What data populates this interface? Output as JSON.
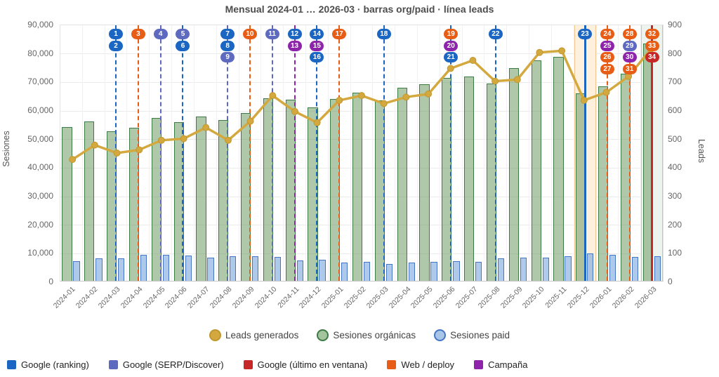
{
  "title": "Mensual 2024-01 … 2026-03 · barras org/paid · línea leads",
  "chart_data": {
    "type": "bar+line",
    "categories": [
      "2024-01",
      "2024-02",
      "2024-03",
      "2024-04",
      "2024-05",
      "2024-06",
      "2024-07",
      "2024-08",
      "2024-09",
      "2024-10",
      "2024-11",
      "2024-12",
      "2025-01",
      "2025-02",
      "2025-03",
      "2025-04",
      "2025-05",
      "2025-06",
      "2025-07",
      "2025-08",
      "2025-09",
      "2025-10",
      "2025-11",
      "2025-12",
      "2026-01",
      "2026-02",
      "2026-03"
    ],
    "series": [
      {
        "name": "Sesiones orgánicas",
        "type": "bar",
        "axis": "left",
        "values": [
          53800,
          55900,
          52400,
          53600,
          57000,
          55500,
          57500,
          56300,
          58800,
          64000,
          63500,
          60800,
          63800,
          65900,
          63300,
          67600,
          68900,
          71100,
          71500,
          69000,
          74400,
          77100,
          78500,
          65600,
          68100,
          72500,
          83000
        ]
      },
      {
        "name": "Sesiones paid",
        "type": "bar",
        "axis": "left",
        "values": [
          7000,
          7800,
          7900,
          9200,
          9100,
          8900,
          8100,
          8700,
          8600,
          8400,
          7200,
          7400,
          6300,
          6600,
          5800,
          6400,
          6700,
          6900,
          6600,
          7800,
          8000,
          8200,
          8600,
          9500,
          9200,
          8400,
          8600
        ]
      },
      {
        "name": "Leads generados",
        "type": "line",
        "axis": "right",
        "values": [
          380,
          425,
          400,
          410,
          440,
          445,
          480,
          440,
          500,
          580,
          530,
          495,
          565,
          580,
          555,
          575,
          585,
          665,
          690,
          625,
          630,
          715,
          720,
          565,
          590,
          640,
          725
        ]
      }
    ],
    "left_axis": {
      "label": "Sesiones",
      "min": 0,
      "max": 90000,
      "step": 10000
    },
    "right_axis": {
      "label": "Leads",
      "min": 0,
      "max": 800,
      "step": 100
    },
    "grid": true,
    "event_types": {
      "ranking": {
        "label": "Google (ranking)",
        "color": "#1a66c2"
      },
      "serp": {
        "label": "Google (SERP/Discover)",
        "color": "#5e6abf"
      },
      "window": {
        "label": "Google (último en ventana)",
        "color": "#c62828"
      },
      "deploy": {
        "label": "Web / deploy",
        "color": "#e85d15"
      },
      "campaign": {
        "label": "Campaña",
        "color": "#8e24aa"
      }
    },
    "event_order": [
      "ranking",
      "serp",
      "window",
      "deploy",
      "campaign"
    ],
    "events": [
      {
        "month": "2024-03",
        "line_style": "dashed",
        "markers": [
          {
            "n": 1,
            "type": "ranking"
          },
          {
            "n": 2,
            "type": "ranking"
          }
        ]
      },
      {
        "month": "2024-04",
        "line_style": "dashed",
        "markers": [
          {
            "n": 3,
            "type": "deploy"
          }
        ]
      },
      {
        "month": "2024-05",
        "line_style": "dashed",
        "markers": [
          {
            "n": 4,
            "type": "serp"
          }
        ]
      },
      {
        "month": "2024-06",
        "line_style": "dashed",
        "markers": [
          {
            "n": 5,
            "type": "serp"
          },
          {
            "n": 6,
            "type": "ranking"
          }
        ]
      },
      {
        "month": "2024-08",
        "line_style": "dashed",
        "markers": [
          {
            "n": 7,
            "type": "ranking"
          },
          {
            "n": 8,
            "type": "ranking"
          },
          {
            "n": 9,
            "type": "serp"
          }
        ]
      },
      {
        "month": "2024-09",
        "line_style": "dashed",
        "markers": [
          {
            "n": 10,
            "type": "deploy"
          }
        ]
      },
      {
        "month": "2024-10",
        "line_style": "dashed",
        "markers": [
          {
            "n": 11,
            "type": "serp"
          }
        ]
      },
      {
        "month": "2024-11",
        "line_style": "dashed",
        "markers": [
          {
            "n": 12,
            "type": "ranking"
          },
          {
            "n": 13,
            "type": "campaign"
          }
        ]
      },
      {
        "month": "2024-12",
        "line_style": "dashed",
        "markers": [
          {
            "n": 14,
            "type": "ranking"
          },
          {
            "n": 15,
            "type": "campaign"
          },
          {
            "n": 16,
            "type": "ranking"
          }
        ]
      },
      {
        "month": "2025-01",
        "line_style": "dashed",
        "markers": [
          {
            "n": 17,
            "type": "deploy"
          }
        ]
      },
      {
        "month": "2025-03",
        "line_style": "dashed",
        "markers": [
          {
            "n": 18,
            "type": "ranking"
          }
        ]
      },
      {
        "month": "2025-06",
        "line_style": "dashed",
        "markers": [
          {
            "n": 19,
            "type": "deploy"
          },
          {
            "n": 20,
            "type": "campaign"
          },
          {
            "n": 21,
            "type": "ranking"
          }
        ]
      },
      {
        "month": "2025-08",
        "line_style": "dashed",
        "markers": [
          {
            "n": 22,
            "type": "ranking"
          }
        ]
      },
      {
        "month": "2025-12",
        "line_style": "solid",
        "markers": [
          {
            "n": 23,
            "type": "ranking"
          }
        ]
      },
      {
        "month": "2026-01",
        "line_style": "dashed",
        "markers": [
          {
            "n": 24,
            "type": "deploy"
          },
          {
            "n": 25,
            "type": "campaign"
          },
          {
            "n": 26,
            "type": "deploy"
          },
          {
            "n": 27,
            "type": "deploy"
          }
        ]
      },
      {
        "month": "2026-02",
        "line_style": "dashed",
        "markers": [
          {
            "n": 28,
            "type": "deploy"
          },
          {
            "n": 29,
            "type": "serp"
          },
          {
            "n": 30,
            "type": "campaign"
          },
          {
            "n": 31,
            "type": "deploy"
          }
        ]
      },
      {
        "month": "2026-03",
        "line_style": "solid",
        "markers": [
          {
            "n": 32,
            "type": "deploy"
          },
          {
            "n": 33,
            "type": "deploy"
          },
          {
            "n": 34,
            "type": "window"
          }
        ]
      }
    ],
    "highlight_bands": [
      {
        "month": "2025-12",
        "fill": "#fdf0dd",
        "border": "#f2c791"
      },
      {
        "month": "2026-03",
        "fill": "#edf3ed",
        "border": "#b3d0b3"
      }
    ]
  },
  "legend_series": [
    {
      "label": "Leads generados",
      "fill": "#d3a83e",
      "border": "#c1982f"
    },
    {
      "label": "Sesiones orgánicas",
      "fill": "#a3c49d",
      "border": "#3d7b45"
    },
    {
      "label": "Sesiones paid",
      "fill": "#a9c6e8",
      "border": "#4576c4"
    }
  ],
  "colors": {
    "organic_fill": "rgba(110,155,100,0.55)",
    "organic_border": "#3d7b45",
    "paid_fill": "rgba(120,165,220,0.6)",
    "paid_border": "#4576c4",
    "leads_line": "#d3a83e",
    "grid_line": "#ebebeb",
    "axis_text": "#666666",
    "title_text": "#4d4d4d"
  }
}
